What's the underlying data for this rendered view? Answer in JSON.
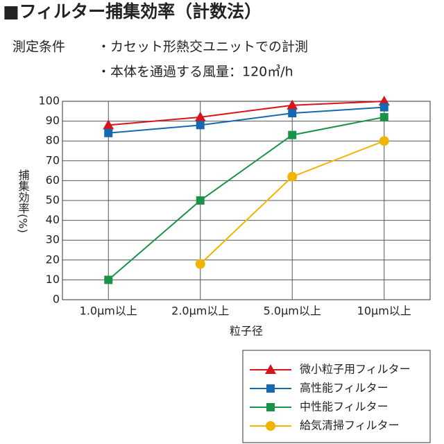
{
  "chart_data": {
    "type": "line",
    "title": "■フィルター捕集効率（計数法）",
    "conditions_label": "測定条件",
    "conditions": [
      "・カセット形熱交ユニットでの計測",
      "・本体を通過する風量：120㎥/h"
    ],
    "y_label": "捕集効率(%)",
    "x_label": "粒子径",
    "categories": [
      "1.0μm以上",
      "2.0μm以上",
      "5.0μm以上",
      "10μm以上"
    ],
    "ylim": [
      0,
      100
    ],
    "yticks": [
      0,
      10,
      20,
      30,
      40,
      50,
      60,
      70,
      80,
      90,
      100
    ],
    "grid": true,
    "series": [
      {
        "name": "微小粒子用フィルター",
        "color": "#d7141e",
        "marker": "triangle",
        "values": [
          88,
          92,
          98,
          100
        ]
      },
      {
        "name": "高性能フィルター",
        "color": "#1668b0",
        "marker": "square",
        "values": [
          84,
          88,
          94,
          97
        ]
      },
      {
        "name": "中性能フィルター",
        "color": "#1a9248",
        "marker": "square",
        "values": [
          10,
          50,
          83,
          92
        ]
      },
      {
        "name": "給気清掃フィルター",
        "color": "#f1b400",
        "marker": "circle",
        "values": [
          null,
          18,
          62,
          80
        ]
      }
    ]
  }
}
